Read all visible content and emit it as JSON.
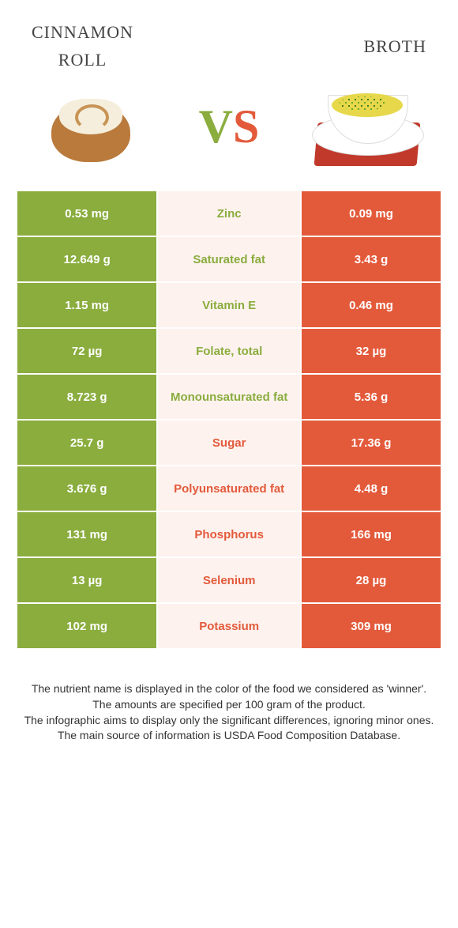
{
  "colors": {
    "left_bg": "#8aad3e",
    "right_bg": "#e35a3b",
    "mid_bg": "#fdf2ee",
    "text_on_color": "#ffffff"
  },
  "header": {
    "food_left": "cinnamon\nroll",
    "food_right": "broth",
    "left_title_fontsize": "32px",
    "right_title_fontsize": "32px",
    "vs_left_char": "V",
    "vs_right_char": "S"
  },
  "rows": [
    {
      "left": "0.53 mg",
      "mid": "Zinc",
      "right": "0.09 mg",
      "winner": "left"
    },
    {
      "left": "12.649 g",
      "mid": "Saturated fat",
      "right": "3.43 g",
      "winner": "left"
    },
    {
      "left": "1.15 mg",
      "mid": "Vitamin E",
      "right": "0.46 mg",
      "winner": "left"
    },
    {
      "left": "72 µg",
      "mid": "Folate, total",
      "right": "32 µg",
      "winner": "left"
    },
    {
      "left": "8.723 g",
      "mid": "Monounsaturated fat",
      "right": "5.36 g",
      "winner": "left"
    },
    {
      "left": "25.7 g",
      "mid": "Sugar",
      "right": "17.36 g",
      "winner": "right"
    },
    {
      "left": "3.676 g",
      "mid": "Polyunsaturated fat",
      "right": "4.48 g",
      "winner": "right"
    },
    {
      "left": "131 mg",
      "mid": "Phosphorus",
      "right": "166 mg",
      "winner": "right"
    },
    {
      "left": "13 µg",
      "mid": "Selenium",
      "right": "28 µg",
      "winner": "right"
    },
    {
      "left": "102 mg",
      "mid": "Potassium",
      "right": "309 mg",
      "winner": "right"
    }
  ],
  "footnote": {
    "line1": "The nutrient name is displayed in the color of the food we considered as 'winner'.",
    "line2": "The amounts are specified per 100 gram of the product.",
    "line3": "The infographic aims to display only the significant differences, ignoring minor ones.",
    "line4": "The main source of information is USDA Food Composition Database."
  }
}
